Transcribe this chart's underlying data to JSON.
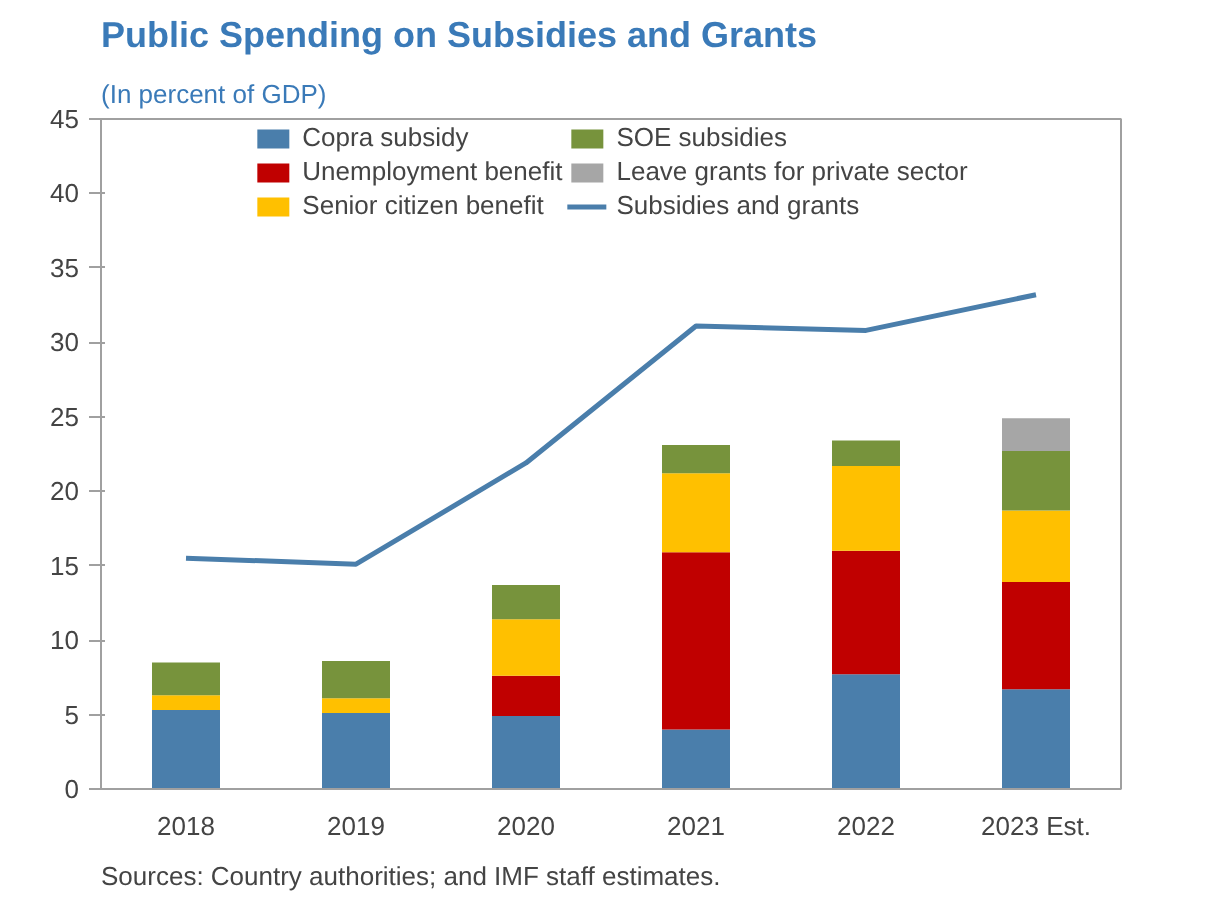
{
  "chart_data": {
    "type": "bar",
    "stacked": true,
    "title": "Public Spending on Subsidies and Grants",
    "subtitle": "(In percent of  GDP)",
    "categories": [
      "2018",
      "2019",
      "2020",
      "2021",
      "2022",
      "2023 Est."
    ],
    "series": [
      {
        "name": "Copra subsidy",
        "color": "#4a7eab",
        "values": [
          5.3,
          5.1,
          4.9,
          4.0,
          7.7,
          6.7
        ]
      },
      {
        "name": "Unemployment benefit",
        "color": "#c00000",
        "values": [
          null,
          null,
          2.7,
          11.9,
          8.3,
          7.2
        ]
      },
      {
        "name": "Senior citizen benefit",
        "color": "#ffc000",
        "values": [
          1.0,
          1.0,
          3.8,
          5.3,
          5.7,
          4.8
        ]
      },
      {
        "name": "SOE subsidies",
        "color": "#77933c",
        "values": [
          2.2,
          2.5,
          2.3,
          1.9,
          1.7,
          4.0
        ]
      },
      {
        "name": "Leave grants for private sector",
        "color": "#a6a6a6",
        "values": [
          null,
          null,
          null,
          null,
          null,
          2.2
        ]
      },
      {
        "name": "Subsidies and grants",
        "type": "line",
        "color": "#4a7eab",
        "values": [
          15.5,
          15.1,
          21.9,
          31.1,
          30.8,
          33.2
        ]
      }
    ],
    "ylim": [
      0,
      45
    ],
    "yticks": [
      0,
      5,
      10,
      15,
      20,
      25,
      30,
      35,
      40,
      45
    ],
    "grid": false,
    "legend": "top",
    "annotations": [
      "Sources: Country authorities; and IMF staff estimates."
    ]
  }
}
